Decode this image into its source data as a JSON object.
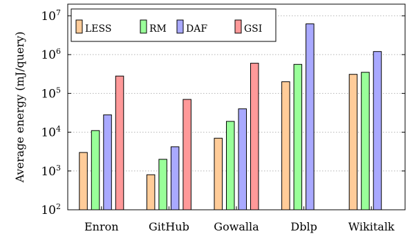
{
  "chart_data": {
    "type": "bar",
    "ylabel": "Average energy (mJ/query)",
    "yscale": "log",
    "ylim": [
      100,
      20000000
    ],
    "ytick_values": [
      100,
      1000,
      10000,
      100000,
      1000000,
      10000000
    ],
    "yticks": [
      {
        "base": "10",
        "exp": "2"
      },
      {
        "base": "10",
        "exp": "3"
      },
      {
        "base": "10",
        "exp": "4"
      },
      {
        "base": "10",
        "exp": "5"
      },
      {
        "base": "10",
        "exp": "6"
      },
      {
        "base": "10",
        "exp": "7"
      }
    ],
    "grid": "horizontal dotted",
    "legend_position": "top-left",
    "categories": [
      "Enron",
      "GitHub",
      "Gowalla",
      "Dblp",
      "Wikitalk"
    ],
    "series": [
      {
        "name": "LESS",
        "color": "#ffcc99",
        "values": [
          3000,
          800,
          7000,
          200000,
          310000
        ]
      },
      {
        "name": "RM",
        "color": "#99ff99",
        "values": [
          11000,
          2000,
          19000,
          560000,
          350000
        ]
      },
      {
        "name": "DAF",
        "color": "#a9a9ff",
        "values": [
          28000,
          4200,
          40000,
          6200000,
          1200000
        ]
      },
      {
        "name": "GSI",
        "color": "#ff9999",
        "values": [
          280000,
          70000,
          600000,
          null,
          null
        ]
      }
    ]
  }
}
